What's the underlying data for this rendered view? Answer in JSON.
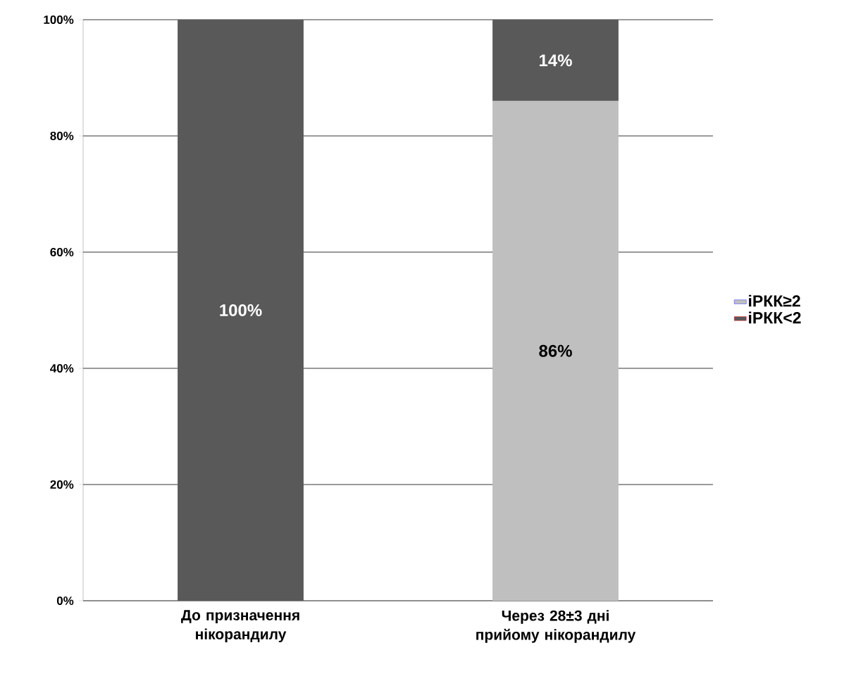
{
  "chart_data": {
    "type": "bar",
    "stacked": true,
    "categories": [
      "До призначення нікорандилу",
      "Через 28±3 дні прийому нікорандилу"
    ],
    "series": [
      {
        "name": "іРКК≥2",
        "color": "#bfbfbf",
        "values": [
          0,
          86
        ],
        "value_labels": [
          null,
          "86%"
        ]
      },
      {
        "name": "іРКК<2",
        "color": "#595959",
        "values": [
          100,
          14
        ],
        "value_labels": [
          "100%",
          "14%"
        ]
      }
    ],
    "ylim": [
      0,
      100
    ],
    "yticks": [
      {
        "value": 0,
        "label": "0%"
      },
      {
        "value": 20,
        "label": "20%"
      },
      {
        "value": 40,
        "label": "40%"
      },
      {
        "value": 60,
        "label": "60%"
      },
      {
        "value": 80,
        "label": "80%"
      },
      {
        "value": 100,
        "label": "100%"
      }
    ],
    "grid": "y",
    "legend": "right"
  }
}
